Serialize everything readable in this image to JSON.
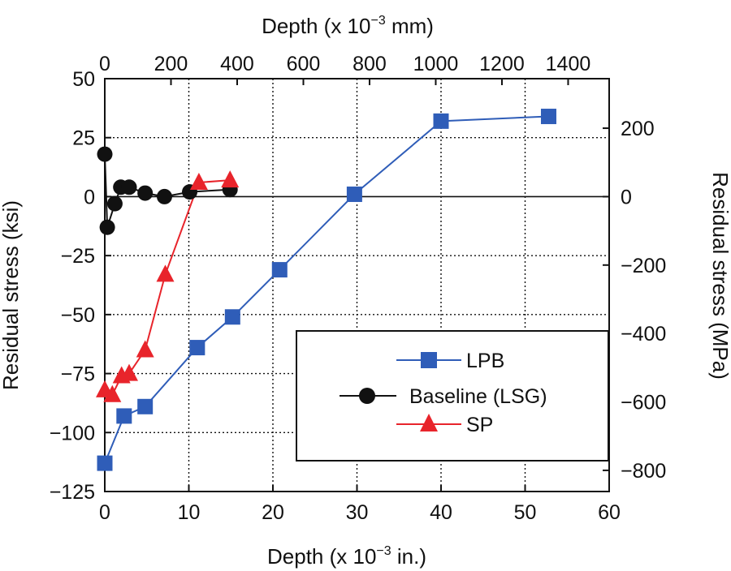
{
  "chart_data": {
    "type": "line",
    "xlabel_bottom": "Depth (x 10",
    "xlabel_bottom_exp": "−3",
    "xlabel_bottom_unit": " in.)",
    "xlabel_top": "Depth (x 10",
    "xlabel_top_exp": "−3",
    "xlabel_top_unit": " mm)",
    "ylabel_left": "Residual stress (ksi)",
    "ylabel_right": "Residual stress (MPa)",
    "xlim": [
      0,
      60
    ],
    "ylim": [
      -125,
      50
    ],
    "grid": true,
    "x_ticks": [
      0,
      10,
      20,
      30,
      40,
      50,
      60
    ],
    "y_ticks": [
      50,
      25,
      0,
      -25,
      -50,
      -75,
      -100,
      -125
    ],
    "top_ticks_mm": [
      0,
      200,
      400,
      600,
      800,
      1000,
      1200,
      1400
    ],
    "right_ticks_mpa": [
      200,
      0,
      -200,
      -400,
      -600,
      -800
    ],
    "y_tick_labels": [
      "50",
      "25",
      "0",
      "−25",
      "−50",
      "−75",
      "−100",
      "−125"
    ],
    "right_tick_labels": [
      "200",
      "0",
      "−200",
      "−400",
      "−600",
      "−800"
    ],
    "series": [
      {
        "name": "LPB",
        "color": "#2f5db8",
        "marker": "square",
        "x": [
          0,
          2.3,
          4.8,
          11.0,
          15.2,
          20.8,
          29.7,
          40.0,
          52.8
        ],
        "y": [
          -113,
          -93,
          -89,
          -64,
          -51,
          -31,
          1,
          32,
          34
        ]
      },
      {
        "name": "Baseline (LSG)",
        "color": "#111111",
        "marker": "circle",
        "x": [
          0,
          0.3,
          1.2,
          1.9,
          2.9,
          4.8,
          7.1,
          10.1,
          14.9
        ],
        "y": [
          18,
          -13,
          -3,
          4,
          4,
          1.5,
          0,
          2,
          3
        ]
      },
      {
        "name": "SP",
        "color": "#e8242b",
        "marker": "triangle",
        "x": [
          0,
          0.9,
          2.0,
          2.9,
          4.8,
          7.2,
          11.2,
          14.9
        ],
        "y": [
          -82,
          -84,
          -76,
          -75,
          -65,
          -33,
          6,
          7
        ]
      }
    ]
  }
}
